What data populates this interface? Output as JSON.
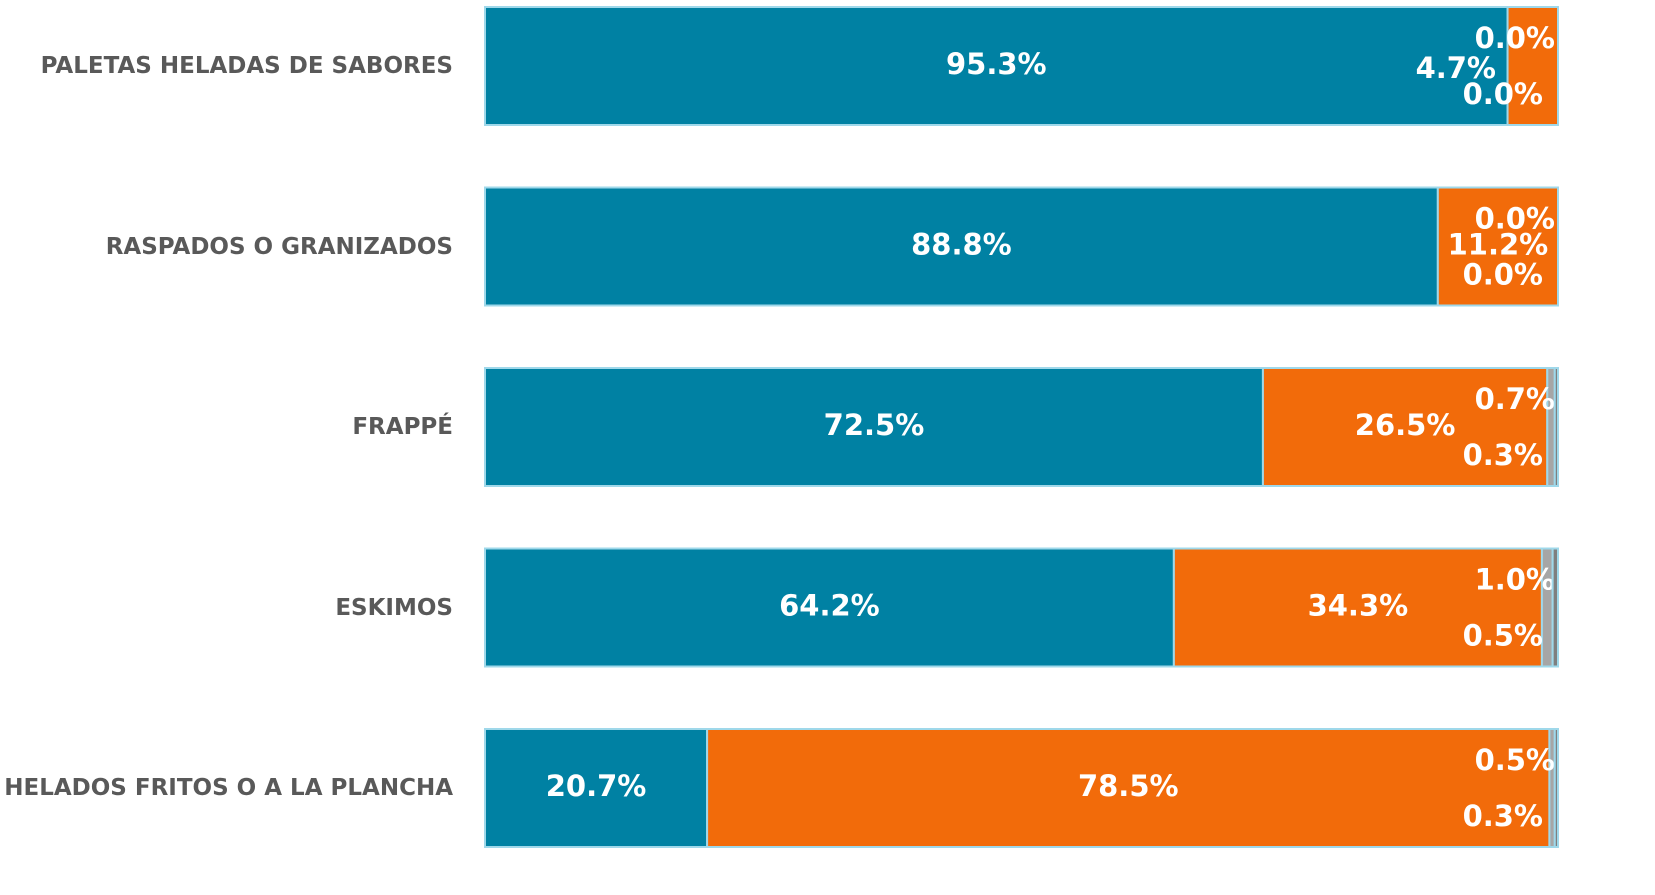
{
  "chart_data": {
    "type": "stacked-bar-horizontal",
    "categories": [
      "PALETAS HELADAS DE SABORES",
      "RASPADOS O GRANIZADOS",
      "FRAPPÉ",
      "ESKIMOS",
      "HELADOS FRITOS O A LA PLANCHA"
    ],
    "xlim": [
      0,
      100
    ],
    "series": [
      {
        "color": "#0081a3",
        "values": [
          95.3,
          88.8,
          72.5,
          64.2,
          20.7
        ],
        "value_labels": [
          "95.3%",
          "88.8%",
          "72.5%",
          "64.2%",
          "20.7%"
        ]
      },
      {
        "color": "#f26b0a",
        "values": [
          4.7,
          11.2,
          26.5,
          34.3,
          78.5
        ],
        "value_labels": [
          "4.7%",
          "11.2%",
          "26.5%",
          "34.3%",
          "78.5%"
        ]
      },
      {
        "color": "#a6a6a6",
        "values": [
          0.0,
          0.0,
          0.7,
          1.0,
          0.5
        ],
        "value_labels": [
          "0.0%",
          "0.0%",
          "0.7%",
          "1.0%",
          "0.5%"
        ]
      },
      {
        "color": "#7f7f7f",
        "values": [
          0.0,
          0.0,
          0.3,
          0.5,
          0.3
        ],
        "value_labels": [
          "0.0%",
          "0.0%",
          "0.3%",
          "0.5%",
          "0.3%"
        ]
      }
    ]
  }
}
